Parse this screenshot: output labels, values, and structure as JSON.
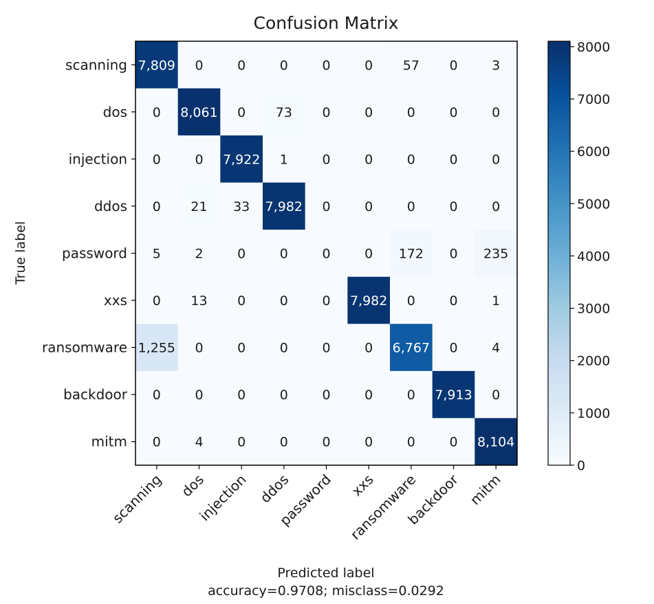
{
  "chart_data": {
    "type": "heatmap",
    "title": "Confusion Matrix",
    "xlabel": "Predicted label",
    "ylabel": "True label",
    "footer": "accuracy=0.9708; misclass=0.0292",
    "labels": [
      "scanning",
      "dos",
      "injection",
      "ddos",
      "password",
      "xxs",
      "ransomware",
      "backdoor",
      "mitm"
    ],
    "matrix": [
      [
        7809,
        0,
        0,
        0,
        0,
        0,
        57,
        0,
        3
      ],
      [
        0,
        8061,
        0,
        73,
        0,
        0,
        0,
        0,
        0
      ],
      [
        0,
        0,
        7922,
        1,
        0,
        0,
        0,
        0,
        0
      ],
      [
        0,
        21,
        33,
        7982,
        0,
        0,
        0,
        0,
        0
      ],
      [
        5,
        2,
        0,
        0,
        0,
        0,
        172,
        0,
        235
      ],
      [
        0,
        13,
        0,
        0,
        0,
        7982,
        0,
        0,
        1
      ],
      [
        1255,
        0,
        0,
        0,
        0,
        0,
        6767,
        0,
        4
      ],
      [
        0,
        0,
        0,
        0,
        0,
        0,
        0,
        7913,
        0
      ],
      [
        0,
        4,
        0,
        0,
        0,
        0,
        0,
        0,
        8104
      ]
    ],
    "colormap": "Blues",
    "colorbar": {
      "min": 0,
      "max": 8104,
      "ticks": [
        0,
        1000,
        2000,
        3000,
        4000,
        5000,
        6000,
        7000,
        8000
      ]
    },
    "grid": false
  }
}
